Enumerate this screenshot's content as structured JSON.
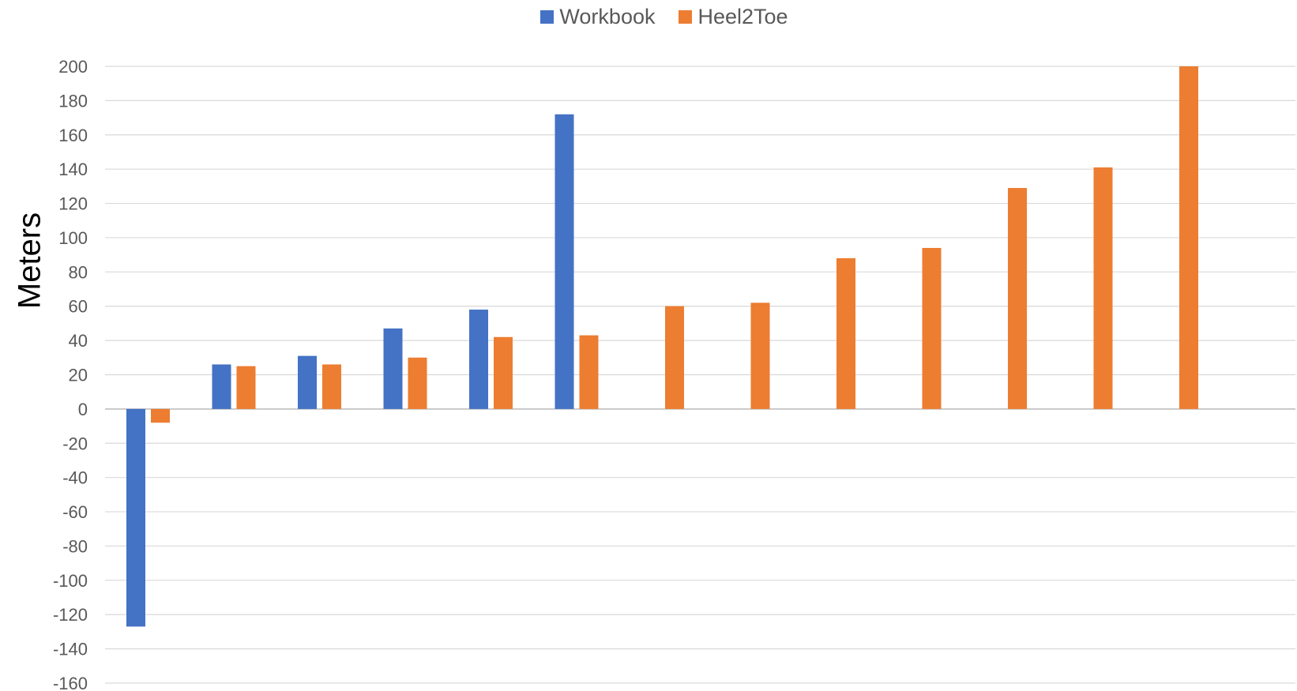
{
  "chart_data": {
    "type": "bar",
    "ylabel": "Meters",
    "xlabel": "",
    "ylim": [
      -160,
      200
    ],
    "y_ticks": [
      200,
      180,
      160,
      140,
      120,
      100,
      80,
      60,
      40,
      20,
      0,
      -20,
      -40,
      -60,
      -80,
      -100,
      -120,
      -140,
      -160
    ],
    "grid": true,
    "legend_position": "top-center",
    "categories": [
      "",
      "",
      "",
      "",
      "",
      "",
      "",
      "",
      "",
      "",
      "",
      "",
      ""
    ],
    "series": [
      {
        "name": "Workbook",
        "color": "#4472C4",
        "values": [
          -127,
          26,
          31,
          47,
          58,
          172,
          null,
          null,
          null,
          null,
          null,
          null,
          null
        ]
      },
      {
        "name": "Heel2Toe",
        "color": "#ED7D31",
        "values": [
          -8,
          25,
          26,
          30,
          42,
          43,
          60,
          62,
          88,
          94,
          129,
          141,
          200
        ]
      }
    ]
  }
}
